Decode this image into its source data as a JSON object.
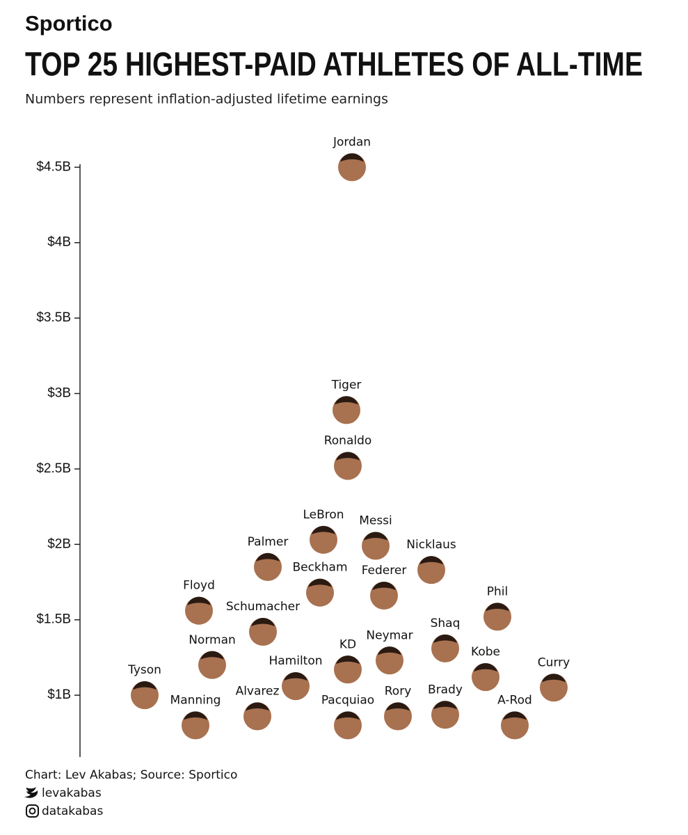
{
  "brand": "Sportico",
  "chart_data": {
    "type": "beeswarm",
    "title": "TOP 25 HIGHEST-PAID ATHLETES OF ALL-TIME",
    "subtitle": "Numbers represent inflation-adjusted lifetime earnings",
    "categories": [
      "Jordan",
      "Tiger",
      "Ronaldo",
      "LeBron",
      "Messi",
      "Palmer",
      "Nicklaus",
      "Beckham",
      "Federer",
      "Floyd",
      "Phil",
      "Schumacher",
      "Shaq",
      "Norman",
      "Neymar",
      "KD",
      "Hamilton",
      "Kobe",
      "Curry",
      "Tyson",
      "Alvarez",
      "Manning",
      "Pacquiao",
      "Rory",
      "Brady",
      "A-Rod"
    ],
    "values": [
      4.5,
      2.89,
      2.52,
      2.03,
      1.99,
      1.85,
      1.83,
      1.68,
      1.66,
      1.56,
      1.52,
      1.42,
      1.31,
      1.2,
      1.23,
      1.17,
      1.06,
      1.12,
      1.05,
      1.0,
      0.86,
      0.8,
      0.8,
      0.86,
      0.87,
      0.8
    ],
    "color": "#a8714f",
    "ylim": [
      0.59,
      4.52
    ],
    "yticks": [
      {
        "value": 1,
        "label": "$1B"
      },
      {
        "value": 1.5,
        "label": "$1.5B"
      },
      {
        "value": 2,
        "label": "$2B"
      },
      {
        "value": 2.5,
        "label": "$2.5B"
      },
      {
        "value": 3,
        "label": "$3B"
      },
      {
        "value": 3.5,
        "label": "$3.5B"
      },
      {
        "value": 4,
        "label": "$4B"
      },
      {
        "value": 4.5,
        "label": "$4.5B"
      }
    ]
  },
  "footer": {
    "credit": "Chart: Lev Akabas; Source: Sportico",
    "twitter": "levakabas",
    "instagram": "datakabas"
  }
}
